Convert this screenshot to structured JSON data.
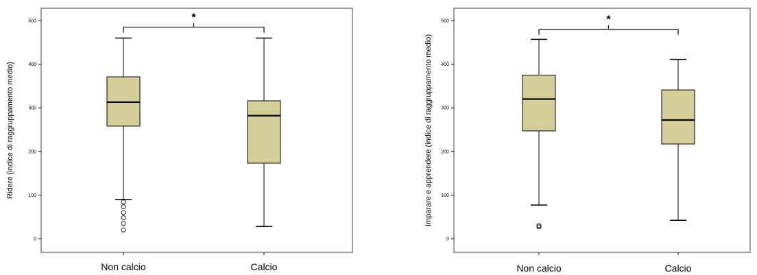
{
  "colors": {
    "box_fill": "#d4cf99",
    "stroke": "#000000",
    "frame": "#3a3a3a"
  },
  "chart_data": [
    {
      "type": "boxplot",
      "ylabel": "Ridere (indice di raggruppamento medio)",
      "ylim": [
        -20,
        520
      ],
      "yticks": [
        0,
        100,
        200,
        300,
        400,
        500
      ],
      "categories": [
        "Non calcio",
        "Calcio"
      ],
      "boxes": [
        {
          "category": "Non calcio",
          "whisker_low": 90,
          "q1": 258,
          "median": 313,
          "q3": 371,
          "whisker_high": 460,
          "outliers": [
            84,
            73,
            60,
            48,
            35,
            20
          ]
        },
        {
          "category": "Calcio",
          "whisker_low": 28,
          "q1": 173,
          "median": 282,
          "q3": 316,
          "whisker_high": 460,
          "outliers": []
        }
      ],
      "significance": {
        "label": "*",
        "between": [
          "Non calcio",
          "Calcio"
        ],
        "y": 485
      }
    },
    {
      "type": "boxplot",
      "ylabel": "Imparare e apprendere (indice di raggruppamento medio)",
      "ylim": [
        -20,
        520
      ],
      "yticks": [
        0,
        100,
        200,
        300,
        400,
        500
      ],
      "categories": [
        "Non calcio",
        "Calcio"
      ],
      "boxes": [
        {
          "category": "Non calcio",
          "whisker_low": 77,
          "q1": 247,
          "median": 320,
          "q3": 375,
          "whisker_high": 457,
          "outliers": [
            30,
            27
          ]
        },
        {
          "category": "Calcio",
          "whisker_low": 42,
          "q1": 217,
          "median": 272,
          "q3": 341,
          "whisker_high": 411,
          "outliers": []
        }
      ],
      "significance": {
        "label": "*",
        "between": [
          "Non calcio",
          "Calcio"
        ],
        "y": 480
      }
    }
  ]
}
